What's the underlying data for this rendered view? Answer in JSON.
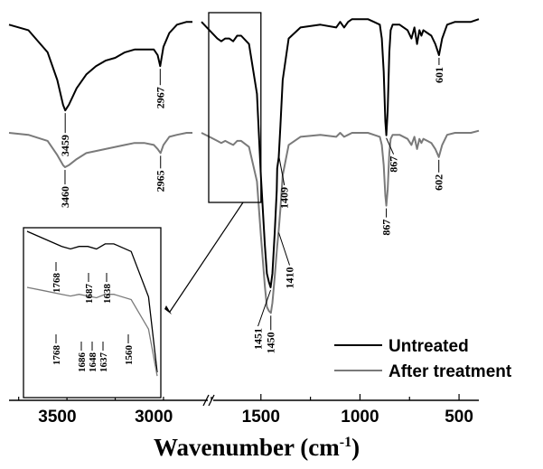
{
  "chart_data": {
    "type": "line",
    "xlabel": "Wavenumber (cm",
    "xlabel_sup": "-1",
    "xlabel_close": ")",
    "x_axis": {
      "break": true,
      "segment_left": {
        "xlim": [
          3750,
          2800
        ],
        "ticks": [
          "3500",
          "3000"
        ]
      },
      "segment_right": {
        "xlim": [
          1800,
          400
        ],
        "ticks": [
          "1500",
          "1000",
          "500"
        ]
      }
    },
    "grid": false,
    "legend_position": "bottom-right",
    "series": [
      {
        "name": "Untreated",
        "color": "#000000",
        "x": [
          3750,
          3650,
          3550,
          3500,
          3470,
          3459,
          3440,
          3400,
          3350,
          3300,
          3250,
          3200,
          3150,
          3100,
          3050,
          3000,
          2980,
          2967,
          2950,
          2920,
          2880,
          2830,
          2800,
          1800,
          1760,
          1720,
          1700,
          1680,
          1660,
          1640,
          1620,
          1600,
          1560,
          1520,
          1500,
          1480,
          1470,
          1460,
          1451,
          1442,
          1430,
          1420,
          1418,
          1410,
          1402,
          1390,
          1360,
          1300,
          1200,
          1120,
          1100,
          1080,
          1060,
          1040,
          1000,
          960,
          930,
          900,
          890,
          880,
          872,
          867,
          860,
          852,
          845,
          835,
          800,
          760,
          740,
          725,
          712,
          700,
          690,
          680,
          660,
          640,
          620,
          601,
          585,
          560,
          520,
          480,
          440,
          400
        ],
        "y": [
          0.95,
          0.93,
          0.85,
          0.75,
          0.66,
          0.64,
          0.66,
          0.72,
          0.77,
          0.8,
          0.82,
          0.83,
          0.85,
          0.86,
          0.86,
          0.86,
          0.84,
          0.8,
          0.87,
          0.92,
          0.95,
          0.96,
          0.96,
          0.96,
          0.93,
          0.9,
          0.89,
          0.9,
          0.9,
          0.89,
          0.91,
          0.91,
          0.88,
          0.7,
          0.4,
          0.15,
          0.05,
          0.02,
          0.0,
          0.05,
          0.2,
          0.35,
          0.43,
          0.47,
          0.58,
          0.75,
          0.9,
          0.94,
          0.95,
          0.94,
          0.96,
          0.94,
          0.96,
          0.97,
          0.97,
          0.97,
          0.96,
          0.95,
          0.9,
          0.78,
          0.6,
          0.55,
          0.64,
          0.85,
          0.93,
          0.95,
          0.95,
          0.93,
          0.9,
          0.94,
          0.88,
          0.93,
          0.91,
          0.93,
          0.92,
          0.91,
          0.88,
          0.84,
          0.9,
          0.95,
          0.96,
          0.96,
          0.96,
          0.97
        ]
      },
      {
        "name": "After treatment",
        "color": "#7a7a7a",
        "x": [
          3750,
          3650,
          3550,
          3500,
          3470,
          3460,
          3440,
          3400,
          3350,
          3300,
          3250,
          3200,
          3150,
          3100,
          3050,
          3000,
          2980,
          2965,
          2950,
          2920,
          2880,
          2830,
          2800,
          1800,
          1760,
          1720,
          1700,
          1680,
          1660,
          1640,
          1620,
          1600,
          1560,
          1520,
          1500,
          1480,
          1470,
          1460,
          1450,
          1442,
          1430,
          1418,
          1410,
          1402,
          1390,
          1360,
          1300,
          1200,
          1120,
          1100,
          1080,
          1060,
          1040,
          1000,
          960,
          930,
          900,
          890,
          880,
          872,
          867,
          860,
          852,
          845,
          835,
          800,
          760,
          740,
          725,
          712,
          700,
          690,
          680,
          660,
          640,
          620,
          602,
          585,
          560,
          520,
          480,
          440,
          400
        ],
        "y": [
          0.96,
          0.95,
          0.92,
          0.85,
          0.8,
          0.79,
          0.8,
          0.83,
          0.86,
          0.87,
          0.88,
          0.89,
          0.9,
          0.91,
          0.91,
          0.9,
          0.88,
          0.86,
          0.9,
          0.94,
          0.95,
          0.96,
          0.96,
          0.96,
          0.94,
          0.92,
          0.91,
          0.92,
          0.91,
          0.9,
          0.92,
          0.92,
          0.89,
          0.72,
          0.45,
          0.2,
          0.1,
          0.08,
          0.07,
          0.12,
          0.25,
          0.4,
          0.48,
          0.58,
          0.75,
          0.9,
          0.94,
          0.95,
          0.94,
          0.96,
          0.94,
          0.95,
          0.96,
          0.96,
          0.96,
          0.95,
          0.94,
          0.9,
          0.8,
          0.65,
          0.6,
          0.68,
          0.86,
          0.93,
          0.95,
          0.95,
          0.93,
          0.9,
          0.94,
          0.88,
          0.93,
          0.91,
          0.93,
          0.92,
          0.91,
          0.88,
          0.84,
          0.9,
          0.95,
          0.96,
          0.96,
          0.96,
          0.97
        ]
      }
    ],
    "annotations": [
      {
        "label": "3459",
        "series": 0,
        "x": 3459
      },
      {
        "label": "2967",
        "series": 0,
        "x": 2967
      },
      {
        "label": "867",
        "series": 0,
        "x": 867
      },
      {
        "label": "601",
        "series": 0,
        "x": 601
      },
      {
        "label": "1409",
        "series": 0,
        "x": 1409
      },
      {
        "label": "3460",
        "series": 1,
        "x": 3460
      },
      {
        "label": "2965",
        "series": 1,
        "x": 2965
      },
      {
        "label": "867",
        "series": 1,
        "x": 867
      },
      {
        "label": "602",
        "series": 1,
        "x": 602
      },
      {
        "label": "1410",
        "series": 1,
        "x": 1410
      },
      {
        "label": "1451",
        "series": 0,
        "x": 1451
      },
      {
        "label": "1450",
        "series": 1,
        "x": 1450
      }
    ],
    "inset": {
      "x_range": [
        1800,
        1500
      ],
      "labels_top": [
        "1768",
        "1687",
        "1638"
      ],
      "labels_bottom": [
        "1768",
        "1686",
        "1648",
        "1637",
        "1560"
      ]
    }
  }
}
